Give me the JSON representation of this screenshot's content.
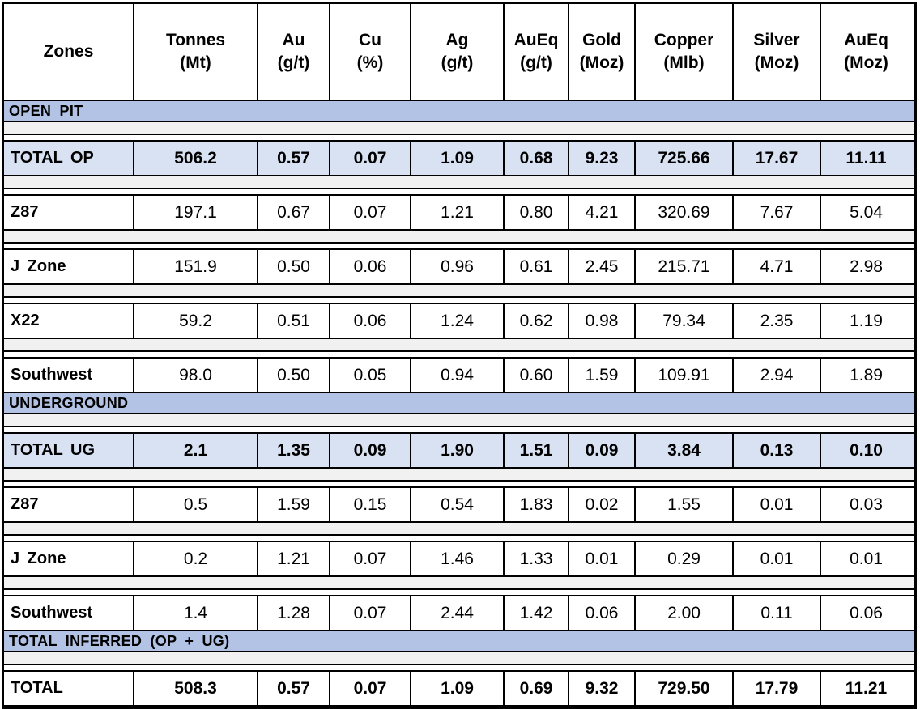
{
  "colors": {
    "band_bg": "#b2c3e5",
    "total_row_bg": "#d9e2f3",
    "spacer_bg": "#f1f1f1",
    "border": "#000000",
    "text": "#000000",
    "row_bg": "#ffffff"
  },
  "chart_data": {
    "type": "table",
    "columns": [
      {
        "line1": "Zones",
        "line2": ""
      },
      {
        "line1": "Tonnes",
        "line2": "(Mt)"
      },
      {
        "line1": "Au",
        "line2": "(g/t)"
      },
      {
        "line1": "Cu",
        "line2": "(%)"
      },
      {
        "line1": "Ag",
        "line2": "(g/t)"
      },
      {
        "line1": "AuEq",
        "line2": "(g/t)"
      },
      {
        "line1": "Gold",
        "line2": "(Moz)"
      },
      {
        "line1": "Copper",
        "line2": "(Mlb)"
      },
      {
        "line1": "Silver",
        "line2": "(Moz)"
      },
      {
        "line1": "AuEq",
        "line2": "(Moz)"
      }
    ],
    "sections": [
      {
        "band": "OPEN PIT",
        "rows": [
          {
            "zone": "TOTAL OP",
            "highlight": true,
            "bold": true,
            "values": [
              "506.2",
              "0.57",
              "0.07",
              "1.09",
              "0.68",
              "9.23",
              "725.66",
              "17.67",
              "11.11"
            ]
          },
          {
            "zone": "Z87",
            "highlight": false,
            "bold": false,
            "values": [
              "197.1",
              "0.67",
              "0.07",
              "1.21",
              "0.80",
              "4.21",
              "320.69",
              "7.67",
              "5.04"
            ]
          },
          {
            "zone": "J Zone",
            "highlight": false,
            "bold": false,
            "values": [
              "151.9",
              "0.50",
              "0.06",
              "0.96",
              "0.61",
              "2.45",
              "215.71",
              "4.71",
              "2.98"
            ]
          },
          {
            "zone": "X22",
            "highlight": false,
            "bold": false,
            "values": [
              "59.2",
              "0.51",
              "0.06",
              "1.24",
              "0.62",
              "0.98",
              "79.34",
              "2.35",
              "1.19"
            ]
          },
          {
            "zone": "Southwest",
            "highlight": false,
            "bold": false,
            "values": [
              "98.0",
              "0.50",
              "0.05",
              "0.94",
              "0.60",
              "1.59",
              "109.91",
              "2.94",
              "1.89"
            ]
          }
        ]
      },
      {
        "band": "UNDERGROUND",
        "rows": [
          {
            "zone": "TOTAL UG",
            "highlight": true,
            "bold": true,
            "values": [
              "2.1",
              "1.35",
              "0.09",
              "1.90",
              "1.51",
              "0.09",
              "3.84",
              "0.13",
              "0.10"
            ]
          },
          {
            "zone": "Z87",
            "highlight": false,
            "bold": false,
            "values": [
              "0.5",
              "1.59",
              "0.15",
              "0.54",
              "1.83",
              "0.02",
              "1.55",
              "0.01",
              "0.03"
            ]
          },
          {
            "zone": "J Zone",
            "highlight": false,
            "bold": false,
            "values": [
              "0.2",
              "1.21",
              "0.07",
              "1.46",
              "1.33",
              "0.01",
              "0.29",
              "0.01",
              "0.01"
            ]
          },
          {
            "zone": "Southwest",
            "highlight": false,
            "bold": false,
            "values": [
              "1.4",
              "1.28",
              "0.07",
              "2.44",
              "1.42",
              "0.06",
              "2.00",
              "0.11",
              "0.06"
            ]
          }
        ]
      },
      {
        "band": "TOTAL INFERRED (OP + UG)",
        "rows": [
          {
            "zone": "TOTAL",
            "highlight": false,
            "bold": true,
            "values": [
              "508.3",
              "0.57",
              "0.07",
              "1.09",
              "0.69",
              "9.32",
              "729.50",
              "17.79",
              "11.21"
            ]
          }
        ]
      }
    ]
  }
}
